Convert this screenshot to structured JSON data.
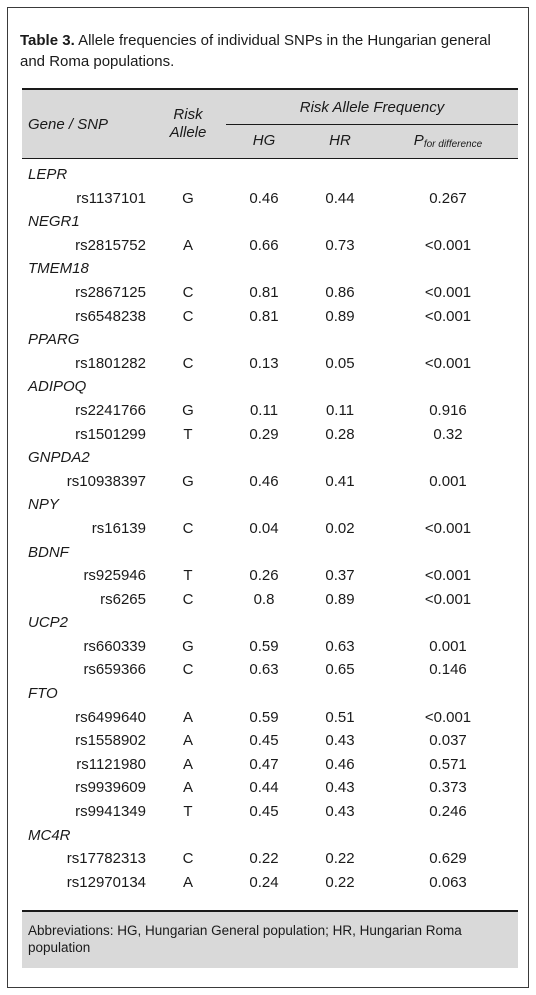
{
  "caption": {
    "label": "Table 3.",
    "text": "Allele frequencies of individual SNPs in the Hungarian general and Roma populations."
  },
  "headers": {
    "gene_snp": "Gene / SNP",
    "risk_allele_line1": "Risk",
    "risk_allele_line2": "Allele",
    "group": "Risk Allele Frequency",
    "hg": "HG",
    "hr": "HR",
    "p_main": "P",
    "p_sub": "for difference"
  },
  "genes": [
    {
      "gene": "LEPR",
      "snps": [
        {
          "snp": "rs1137101",
          "allele": "G",
          "hg": "0.46",
          "hr": "0.44",
          "p": "0.267"
        }
      ]
    },
    {
      "gene": "NEGR1",
      "snps": [
        {
          "snp": "rs2815752",
          "allele": "A",
          "hg": "0.66",
          "hr": "0.73",
          "p": "<0.001"
        }
      ]
    },
    {
      "gene": "TMEM18",
      "snps": [
        {
          "snp": "rs2867125",
          "allele": "C",
          "hg": "0.81",
          "hr": "0.86",
          "p": "<0.001"
        },
        {
          "snp": "rs6548238",
          "allele": "C",
          "hg": "0.81",
          "hr": "0.89",
          "p": "<0.001"
        }
      ]
    },
    {
      "gene": "PPARG",
      "snps": [
        {
          "snp": "rs1801282",
          "allele": "C",
          "hg": "0.13",
          "hr": "0.05",
          "p": "<0.001"
        }
      ]
    },
    {
      "gene": "ADIPOQ",
      "snps": [
        {
          "snp": "rs2241766",
          "allele": "G",
          "hg": "0.11",
          "hr": "0.11",
          "p": "0.916"
        },
        {
          "snp": "rs1501299",
          "allele": "T",
          "hg": "0.29",
          "hr": "0.28",
          "p": "0.32"
        }
      ]
    },
    {
      "gene": "GNPDA2",
      "snps": [
        {
          "snp": "rs10938397",
          "allele": "G",
          "hg": "0.46",
          "hr": "0.41",
          "p": "0.001"
        }
      ]
    },
    {
      "gene": "NPY",
      "snps": [
        {
          "snp": "rs16139",
          "allele": "C",
          "hg": "0.04",
          "hr": "0.02",
          "p": "<0.001"
        }
      ]
    },
    {
      "gene": "BDNF",
      "snps": [
        {
          "snp": "rs925946",
          "allele": "T",
          "hg": "0.26",
          "hr": "0.37",
          "p": "<0.001"
        },
        {
          "snp": "rs6265",
          "allele": "C",
          "hg": "0.8",
          "hr": "0.89",
          "p": "<0.001"
        }
      ]
    },
    {
      "gene": "UCP2",
      "snps": [
        {
          "snp": "rs660339",
          "allele": "G",
          "hg": "0.59",
          "hr": "0.63",
          "p": "0.001"
        },
        {
          "snp": "rs659366",
          "allele": "C",
          "hg": "0.63",
          "hr": "0.65",
          "p": "0.146"
        }
      ]
    },
    {
      "gene": "FTO",
      "snps": [
        {
          "snp": "rs6499640",
          "allele": "A",
          "hg": "0.59",
          "hr": "0.51",
          "p": "<0.001"
        },
        {
          "snp": "rs1558902",
          "allele": "A",
          "hg": "0.45",
          "hr": "0.43",
          "p": "0.037"
        },
        {
          "snp": "rs1121980",
          "allele": "A",
          "hg": "0.47",
          "hr": "0.46",
          "p": "0.571"
        },
        {
          "snp": "rs9939609",
          "allele": "A",
          "hg": "0.44",
          "hr": "0.43",
          "p": "0.373"
        },
        {
          "snp": "rs9941349",
          "allele": "T",
          "hg": "0.45",
          "hr": "0.43",
          "p": "0.246"
        }
      ]
    },
    {
      "gene": "MC4R",
      "snps": [
        {
          "snp": "rs17782313",
          "allele": "C",
          "hg": "0.22",
          "hr": "0.22",
          "p": "0.629"
        },
        {
          "snp": "rs12970134",
          "allele": "A",
          "hg": "0.24",
          "hr": "0.22",
          "p": "0.063"
        }
      ]
    }
  ],
  "footnote": "Abbreviations: HG, Hungarian General population; HR, Hungarian Roma population"
}
